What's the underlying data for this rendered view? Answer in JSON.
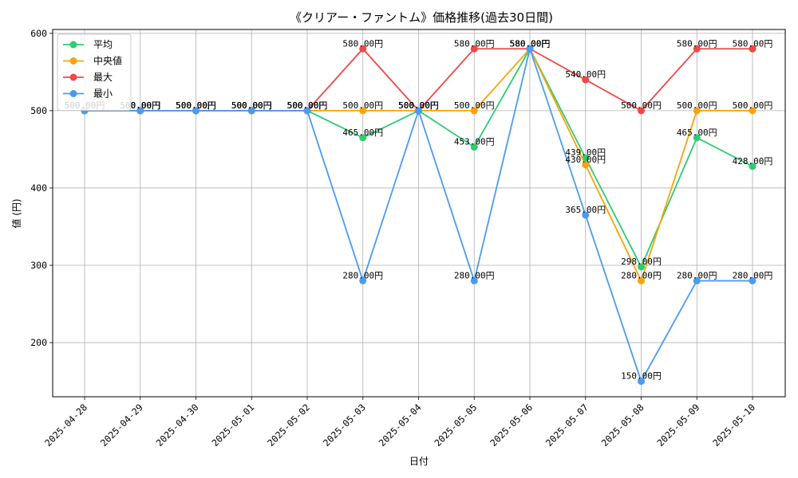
{
  "chart_data": {
    "type": "line",
    "title": "《クリアー・ファントム》価格推移(過去30日間)",
    "xlabel": "日付",
    "ylabel": "値 (円)",
    "categories": [
      "2025-04-28",
      "2025-04-29",
      "2025-04-30",
      "2025-05-01",
      "2025-05-02",
      "2025-05-03",
      "2025-05-04",
      "2025-05-05",
      "2025-05-06",
      "2025-05-07",
      "2025-05-08",
      "2025-05-09",
      "2025-05-10"
    ],
    "ylim": [
      130,
      605
    ],
    "yticks": [
      200,
      300,
      400,
      500,
      600
    ],
    "grid": true,
    "legend_position": "top-left",
    "series": [
      {
        "name": "平均",
        "color": "#2ecc71",
        "values": [
          500,
          500,
          500,
          500,
          500,
          465,
          500,
          453,
          580,
          439,
          298,
          465,
          428
        ],
        "labels": [
          "500.00円",
          "500.00円",
          "500.00円",
          "500.00円",
          "500.00円",
          "465.00円",
          "500.00円",
          "453.00円",
          "580.00円",
          "439.00円",
          "298.00円",
          "465.00円",
          "428.00円"
        ]
      },
      {
        "name": "中央値",
        "color": "#f5a40c",
        "values": [
          500,
          500,
          500,
          500,
          500,
          500,
          500,
          500,
          580,
          430,
          280,
          500,
          500
        ],
        "labels": [
          "500.00円",
          "500.00円",
          "500.00円",
          "500.00円",
          "500.00円",
          "500.00円",
          "500.00円",
          "500.00円",
          "580.00円",
          "430.00円",
          "280.00円",
          "500.00円",
          "500.00円"
        ]
      },
      {
        "name": "最大",
        "color": "#f04848",
        "values": [
          500,
          500,
          500,
          500,
          500,
          580,
          500,
          580,
          580,
          540,
          500,
          580,
          580
        ],
        "labels": [
          "500.00円",
          "500.00円",
          "500.00円",
          "500.00円",
          "500.00円",
          "580.00円",
          "500.00円",
          "580.00円",
          "580.00円",
          "540.00円",
          "500.00円",
          "580.00円",
          "580.00円"
        ]
      },
      {
        "name": "最小",
        "color": "#4c9bf0",
        "values": [
          500,
          500,
          500,
          500,
          500,
          280,
          500,
          280,
          580,
          365,
          150,
          280,
          280
        ],
        "labels": [
          "500.00円",
          "500.00円",
          "500.00円",
          "500.00円",
          "500.00円",
          "280.00円",
          "500.00円",
          "280.00円",
          "580.00円",
          "365.00円",
          "150.00円",
          "280.00円",
          "280.00円"
        ]
      }
    ]
  }
}
